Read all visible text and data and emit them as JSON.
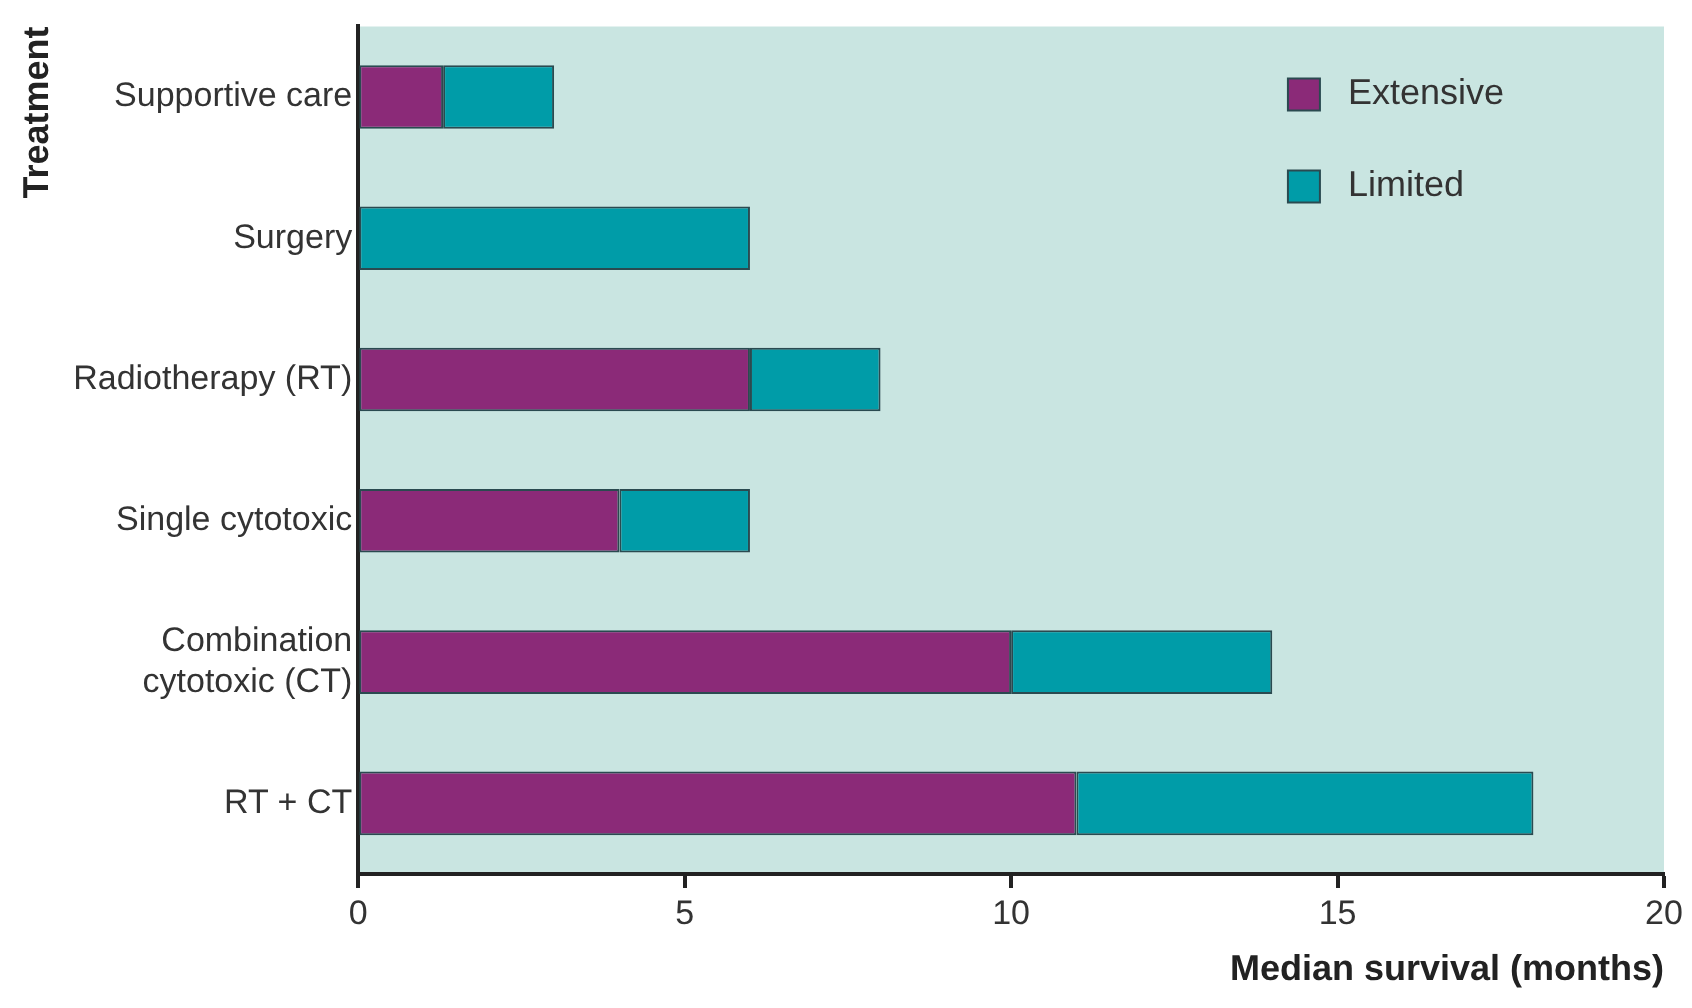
{
  "chart_data": {
    "type": "bar",
    "orientation": "horizontal",
    "stacked": true,
    "categories": [
      "Supportive care",
      "Surgery",
      "Radiotherapy (RT)",
      "Single cytotoxic",
      "Combination cytotoxic (CT)",
      "RT + CT"
    ],
    "series": [
      {
        "name": "Extensive",
        "color": "#8b2a78",
        "values": [
          1.3,
          null,
          6,
          4,
          10,
          11
        ]
      },
      {
        "name": "Limited",
        "color": "#009ca8",
        "values": [
          1.7,
          6,
          2,
          2,
          4,
          7
        ]
      }
    ],
    "xlim": [
      0,
      20
    ],
    "xticks": [
      0,
      5,
      10,
      15,
      20
    ],
    "xlabel": "Median survival (months)",
    "ylabel": "Treatment",
    "legend": "top right",
    "grid": false
  }
}
